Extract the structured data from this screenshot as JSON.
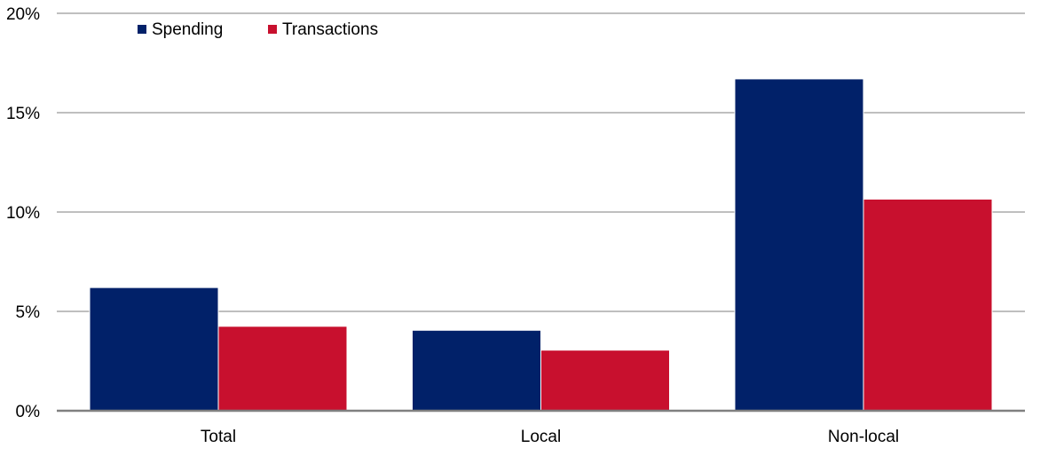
{
  "chart_data": {
    "type": "bar",
    "categories": [
      "Total",
      "Local",
      "Non-local"
    ],
    "series": [
      {
        "name": "Spending",
        "values": [
          6.2,
          4.05,
          16.7
        ],
        "color": "#012169"
      },
      {
        "name": "Transactions",
        "values": [
          4.25,
          3.05,
          10.65
        ],
        "color": "#C8102E"
      }
    ],
    "ylim": [
      0,
      20
    ],
    "yticks": [
      0,
      5,
      10,
      15,
      20
    ],
    "ytick_labels": [
      "0%",
      "5%",
      "10%",
      "15%",
      "20%"
    ],
    "grid": true,
    "gridline_color": "#BFBFBF",
    "axis_color": "#808080",
    "legend_position": "top-left"
  }
}
